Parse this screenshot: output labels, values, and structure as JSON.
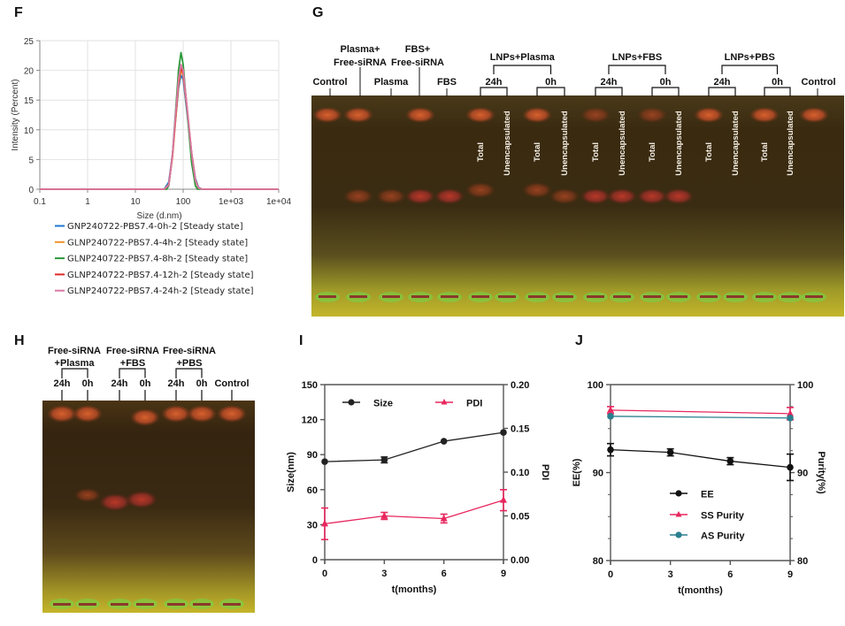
{
  "panels": {
    "F": {
      "letter": "F"
    },
    "G": {
      "letter": "G"
    },
    "H": {
      "letter": "H"
    },
    "I": {
      "letter": "I"
    },
    "J": {
      "letter": "J"
    }
  },
  "gel_G": {
    "top_labels": [
      {
        "id": "control-left",
        "lines": [
          "Control"
        ]
      },
      {
        "id": "plasma-free-sirna",
        "lines": [
          "Plasma+",
          "Free-siRNA"
        ]
      },
      {
        "id": "plasma",
        "lines": [
          "Plasma"
        ]
      },
      {
        "id": "fbs-free-sirna",
        "lines": [
          "FBS+",
          "Free-siRNA"
        ]
      },
      {
        "id": "fbs",
        "lines": [
          "FBS"
        ]
      },
      {
        "id": "control-right",
        "lines": [
          "Control"
        ]
      }
    ],
    "groups": [
      {
        "name": "LNPs+Plasma",
        "timepoints": [
          "24h",
          "0h"
        ]
      },
      {
        "name": "LNPs+FBS",
        "timepoints": [
          "24h",
          "0h"
        ]
      },
      {
        "name": "LNPs+PBS",
        "timepoints": [
          "24h",
          "0h"
        ]
      }
    ],
    "lane_sublabels": [
      "Total",
      "Unencapsulated"
    ],
    "colors": {
      "background_top": "#3a2a12",
      "band": "#d9532a",
      "well_green": "#59d13c",
      "bottom_yellow": "#c7b826"
    }
  },
  "gel_H": {
    "groups": [
      {
        "name_line1": "Free-siRNA",
        "name_line2": "+Plasma",
        "timepoints": [
          "24h",
          "0h"
        ]
      },
      {
        "name_line1": "Free-siRNA",
        "name_line2": "+FBS",
        "timepoints": [
          "24h",
          "0h"
        ]
      },
      {
        "name_line1": "Free-siRNA",
        "name_line2": "+PBS",
        "timepoints": [
          "24h",
          "0h"
        ]
      }
    ],
    "control_label": "Control"
  },
  "chart_data": [
    {
      "id": "F",
      "type": "line",
      "title": "",
      "xlabel": "Size (d.nm)",
      "ylabel": "Intensity (Percent)",
      "xscale": "log",
      "xlim": [
        0.1,
        10000
      ],
      "ylim": [
        0,
        25
      ],
      "xticks": [
        "0.1",
        "1",
        "10",
        "100",
        "1e+03",
        "1e+04"
      ],
      "xtick_values": [
        0.1,
        1,
        10,
        100,
        1000,
        10000
      ],
      "yticks": [
        0,
        5,
        10,
        15,
        20,
        25
      ],
      "grid": true,
      "legend_position": "bottom",
      "series": [
        {
          "name": "GNP240722-PBS7.4-0h-2 [Steady state]",
          "color": "#1f77d0",
          "x": [
            0.1,
            40,
            50,
            60,
            70,
            80,
            90,
            100,
            120,
            150,
            180,
            210,
            250,
            10000
          ],
          "y": [
            0,
            0,
            1.2,
            6,
            12,
            17,
            19.2,
            18.5,
            13,
            6,
            1.8,
            0.3,
            0,
            0
          ]
        },
        {
          "name": "GLNP240722-PBS7.4-4h-2 [Steady state]",
          "color": "#f0922a",
          "x": [
            0.1,
            40,
            50,
            60,
            70,
            80,
            90,
            100,
            120,
            150,
            180,
            210,
            250,
            10000
          ],
          "y": [
            0,
            0,
            0.8,
            5.5,
            12,
            17.5,
            20,
            19.2,
            13.5,
            6,
            1.5,
            0.2,
            0,
            0
          ]
        },
        {
          "name": "GLNP240722-PBS7.4-8h-2 [Steady state]",
          "color": "#2a9a3a",
          "x": [
            0.1,
            45,
            50,
            60,
            70,
            80,
            90,
            100,
            120,
            150,
            180,
            200,
            10000
          ],
          "y": [
            0,
            0,
            0.6,
            6,
            13.5,
            20,
            23,
            21,
            13.5,
            4.5,
            0.6,
            0,
            0
          ]
        },
        {
          "name": "GLNP240722-PBS7.4-12h-2 [Steady state]",
          "color": "#e02a2a",
          "x": [
            0.1,
            40,
            50,
            60,
            70,
            80,
            90,
            100,
            120,
            150,
            180,
            210,
            250,
            10000
          ],
          "y": [
            0,
            0,
            0.7,
            5.8,
            12.5,
            18,
            20.5,
            19.6,
            14,
            6.2,
            1.6,
            0.2,
            0,
            0
          ]
        },
        {
          "name": "GLNP240722-PBS7.4-24h-2 [Steady state]",
          "color": "#d97aa6",
          "x": [
            0.1,
            40,
            50,
            60,
            70,
            80,
            90,
            100,
            120,
            150,
            180,
            210,
            250,
            10000
          ],
          "y": [
            0,
            0,
            0.7,
            6,
            13,
            18.5,
            21,
            20,
            14,
            6,
            1.5,
            0.2,
            0,
            0
          ]
        }
      ]
    },
    {
      "id": "I",
      "type": "line",
      "title": "",
      "xlabel": "t(months)",
      "ylabel": "Size(nm)",
      "ylabel_right": "PDI",
      "x": [
        0,
        3,
        6,
        9
      ],
      "xticks": [
        "0",
        "3",
        "6",
        "9"
      ],
      "xlim": [
        0,
        9
      ],
      "ylim": [
        0,
        150
      ],
      "yticks": [
        "0",
        "30",
        "60",
        "90",
        "120",
        "150"
      ],
      "ylim_right": [
        0,
        0.2
      ],
      "yticks_right": [
        "0.00",
        "0.05",
        "0.10",
        "0.15",
        "0.20"
      ],
      "grid": false,
      "legend_position": "top",
      "series": [
        {
          "name": "Size",
          "axis": "left",
          "color": "#222222",
          "marker": "circle",
          "values": [
            84,
            85.5,
            101.5,
            109
          ],
          "errors": [
            0,
            2.5,
            0,
            0
          ]
        },
        {
          "name": "PDI",
          "axis": "right",
          "color": "#e8275e",
          "marker": "triangle",
          "values": [
            0.041,
            0.05,
            0.047,
            0.068
          ],
          "errors": [
            0.018,
            0.004,
            0.005,
            0.012
          ]
        }
      ]
    },
    {
      "id": "J",
      "type": "line",
      "title": "",
      "xlabel": "t(months)",
      "ylabel": "EE(%)",
      "ylabel_right": "Purity(%)",
      "x": [
        0,
        3,
        6,
        9
      ],
      "xticks": [
        "0",
        "3",
        "6",
        "9"
      ],
      "xlim": [
        0,
        9
      ],
      "ylim": [
        80,
        100
      ],
      "yticks": [
        "80",
        "90",
        "100"
      ],
      "ylim_right": [
        80,
        100
      ],
      "yticks_right": [
        "80",
        "90",
        "100"
      ],
      "grid": false,
      "legend_position": "center",
      "series": [
        {
          "name": "EE",
          "axis": "left",
          "color": "#111111",
          "marker": "circle",
          "x": [
            0,
            3,
            6,
            9
          ],
          "values": [
            92.6,
            92.3,
            91.3,
            90.6
          ],
          "errors": [
            0.7,
            0.4,
            0.4,
            1.5
          ]
        },
        {
          "name": "SS Purity",
          "axis": "right",
          "color": "#e8275e",
          "marker": "triangle",
          "x": [
            0,
            9
          ],
          "values": [
            97.1,
            96.7
          ],
          "errors": [
            0.4,
            0.7
          ]
        },
        {
          "name": "AS Purity",
          "axis": "right",
          "color": "#2a7f8f",
          "marker": "circle",
          "x": [
            0,
            9
          ],
          "values": [
            96.4,
            96.2
          ],
          "errors": [
            0,
            0
          ]
        }
      ]
    }
  ]
}
